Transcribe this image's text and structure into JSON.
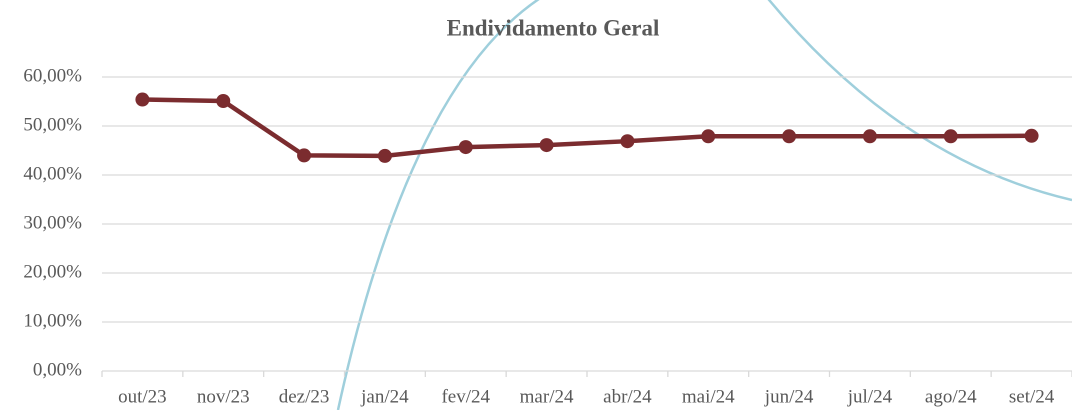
{
  "chart_data": {
    "type": "line",
    "title": "Endividamento Geral",
    "categories": [
      "out/23",
      "nov/23",
      "dez/23",
      "jan/24",
      "fev/24",
      "mar/24",
      "abr/24",
      "mai/24",
      "jun/24",
      "jul/24",
      "ago/24",
      "set/24"
    ],
    "series": [
      {
        "name": "Endividamento Geral",
        "color": "#7b2c2f",
        "values": [
          55.4,
          55.1,
          44.0,
          43.9,
          45.7,
          46.1,
          46.9,
          47.9,
          47.9,
          47.9,
          47.9,
          48.0
        ]
      }
    ],
    "ylim": [
      0,
      60
    ],
    "yticks": [
      {
        "value": 0,
        "label": "0,00%"
      },
      {
        "value": 10,
        "label": "10,00%"
      },
      {
        "value": 20,
        "label": "20,00%"
      },
      {
        "value": 30,
        "label": "30,00%"
      },
      {
        "value": 40,
        "label": "40,00%"
      },
      {
        "value": 50,
        "label": "50,00%"
      },
      {
        "value": 60,
        "label": "60,00%"
      }
    ],
    "grid": true
  }
}
